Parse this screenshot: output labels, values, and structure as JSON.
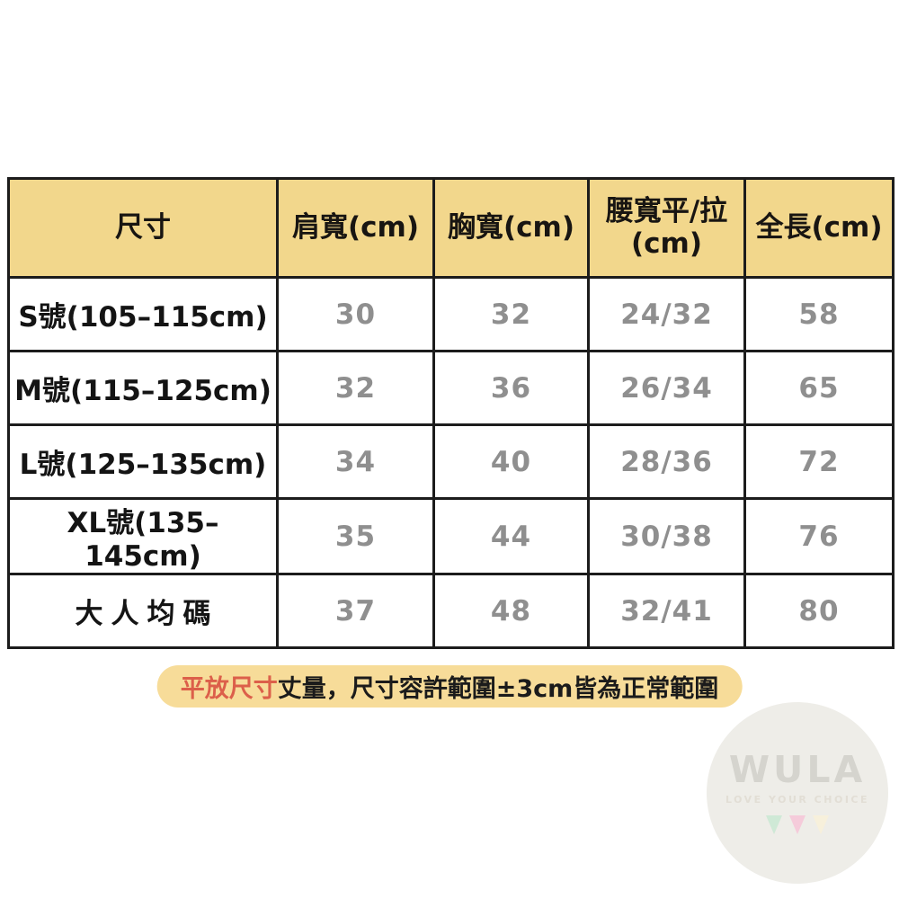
{
  "table": {
    "headers": [
      "尺寸",
      "肩寬(cm)",
      "胸寬(cm)",
      "腰寬平/拉\n(cm)",
      "全長(cm)"
    ],
    "rows": [
      {
        "label": "S號(105–115cm)",
        "values": [
          "30",
          "32",
          "24/32",
          "58"
        ]
      },
      {
        "label": "M號(115–125cm)",
        "values": [
          "32",
          "36",
          "26/34",
          "65"
        ]
      },
      {
        "label": "L號(125–135cm)",
        "values": [
          "34",
          "40",
          "28/36",
          "72"
        ]
      },
      {
        "label": "XL號(135–145cm)",
        "values": [
          "35",
          "44",
          "30/38",
          "76"
        ]
      },
      {
        "label": "大人均碼",
        "values": [
          "37",
          "48",
          "32/41",
          "80"
        ]
      }
    ]
  },
  "note": {
    "highlight": "平放尺寸",
    "text": "丈量，尺寸容許範圍±3cm皆為正常範圍"
  },
  "watermark": {
    "brand": "WULA",
    "tagline": "LOVE YOUR CHOICE"
  },
  "colors": {
    "header_bg": "#F2D78C",
    "note_bg": "#F7DC99",
    "note_highlight": "#DC5F4A",
    "value_text": "#8F8F8F",
    "label_text": "#141414",
    "border": "#1C1C1C",
    "watermark_circle": "#EEEDE8",
    "triangle_green": "#CFE9D6",
    "triangle_pink": "#F5CBDA",
    "triangle_cream": "#F7F0DB"
  }
}
